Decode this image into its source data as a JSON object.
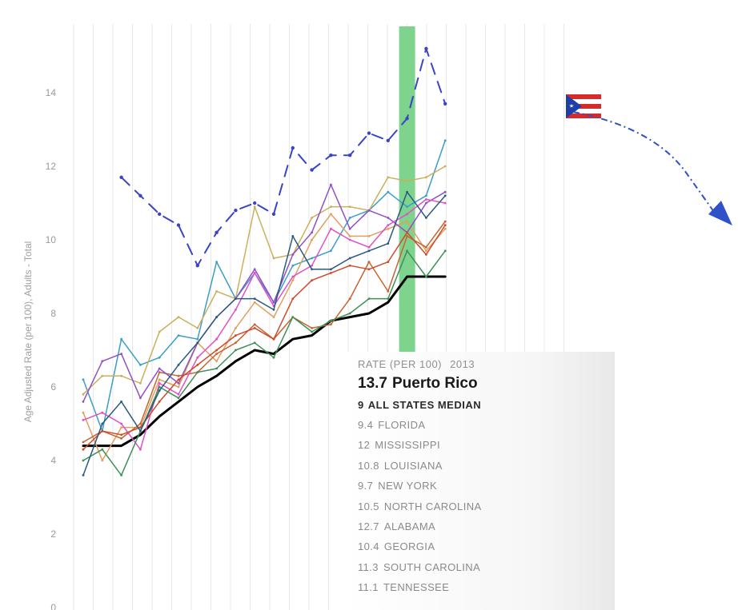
{
  "chart_data": {
    "type": "line",
    "ylabel": "Age Adjusted Rate (per 100), Adults - Total",
    "ylim": [
      0,
      16
    ],
    "yticks": [
      0,
      2,
      4,
      6,
      8,
      10,
      12,
      14
    ],
    "x_count": 20,
    "highlight_index": 17,
    "series": [
      {
        "values": [
          null,
          null,
          11.7,
          11.2,
          10.7,
          10.4,
          9.3,
          10.2,
          10.8,
          11.0,
          10.7,
          12.5,
          11.9,
          12.3,
          12.3,
          12.9,
          12.7,
          13.3,
          15.2,
          13.7
        ],
        "color": "#3a44c8",
        "style": "dashed",
        "width": 2
      },
      {
        "values": [
          4.4,
          4.4,
          4.4,
          4.7,
          5.2,
          5.6,
          6.0,
          6.3,
          6.7,
          7.0,
          6.9,
          7.3,
          7.4,
          7.8,
          7.9,
          8.0,
          8.3,
          9.0,
          9.0,
          9.0
        ],
        "color": "#000000",
        "style": "solid",
        "width": 3
      },
      {
        "values": [
          6.2,
          4.8,
          7.3,
          6.6,
          6.8,
          7.4,
          7.3,
          9.4,
          8.4,
          9.1,
          8.3,
          9.3,
          9.5,
          9.7,
          10.6,
          10.8,
          11.3,
          10.9,
          11.2,
          12.7
        ],
        "color": "#3a9ec8",
        "style": "solid",
        "width": 1.5
      },
      {
        "values": [
          5.8,
          6.3,
          6.3,
          6.1,
          7.5,
          7.9,
          7.6,
          8.6,
          8.4,
          10.9,
          9.5,
          9.6,
          10.6,
          10.9,
          10.9,
          10.8,
          11.7,
          11.6,
          11.7,
          12.0
        ],
        "color": "#c9b05a",
        "style": "solid",
        "width": 1.5
      },
      {
        "values": [
          5.3,
          4.0,
          4.9,
          4.9,
          6.2,
          6.0,
          7.2,
          6.7,
          7.6,
          8.3,
          7.9,
          8.9,
          10.0,
          10.7,
          10.1,
          10.1,
          10.3,
          10.5,
          9.7,
          10.3
        ],
        "color": "#e0a060",
        "style": "solid",
        "width": 1.5
      },
      {
        "values": [
          4.5,
          4.8,
          4.6,
          5.0,
          6.4,
          6.3,
          6.4,
          6.9,
          7.2,
          7.7,
          7.3,
          7.9,
          7.6,
          7.7,
          8.4,
          9.4,
          8.6,
          10.1,
          9.8,
          10.5
        ],
        "color": "#c86432",
        "style": "solid",
        "width": 1.5
      },
      {
        "values": [
          5.6,
          6.7,
          6.9,
          5.7,
          6.5,
          6.1,
          7.2,
          7.9,
          8.4,
          9.2,
          8.3,
          9.6,
          10.2,
          11.5,
          10.3,
          10.8,
          10.6,
          10.2,
          11.0,
          11.3
        ],
        "color": "#9050c8",
        "style": "solid",
        "width": 1.5
      },
      {
        "values": [
          5.1,
          5.3,
          5.0,
          4.3,
          6.1,
          5.8,
          6.8,
          7.3,
          8.1,
          9.1,
          8.2,
          9.0,
          9.3,
          10.3,
          10.0,
          9.8,
          10.4,
          10.7,
          11.1,
          11.0
        ],
        "color": "#e050c8",
        "style": "solid",
        "width": 1.5
      },
      {
        "values": [
          4.3,
          4.8,
          4.7,
          4.9,
          5.6,
          6.2,
          6.6,
          7.0,
          7.4,
          7.6,
          7.3,
          8.4,
          8.9,
          9.1,
          9.3,
          9.2,
          9.4,
          10.2,
          9.6,
          10.4
        ],
        "color": "#d04a2a",
        "style": "solid",
        "width": 1.5
      },
      {
        "values": [
          4.0,
          4.3,
          3.6,
          4.8,
          6.0,
          5.7,
          6.4,
          6.5,
          7.0,
          7.2,
          6.8,
          7.9,
          7.5,
          7.8,
          8.0,
          8.4,
          8.4,
          9.7,
          9.0,
          9.7
        ],
        "color": "#3f8f5a",
        "style": "solid",
        "width": 1.5
      },
      {
        "values": [
          3.6,
          5.0,
          5.6,
          4.8,
          5.9,
          6.6,
          7.2,
          7.9,
          8.4,
          8.4,
          8.1,
          10.1,
          9.2,
          9.2,
          9.5,
          9.7,
          9.9,
          11.3,
          10.6,
          11.2
        ],
        "color": "#2a5a80",
        "style": "solid",
        "width": 1.5
      }
    ],
    "tooltip": {
      "header_label": "RATE (PER 100)",
      "header_year": "2013",
      "highlight_value": "13.7",
      "highlight_name": "Puerto Rico",
      "median_value": "9",
      "median_name": "ALL STATES MEDIAN",
      "rows": [
        {
          "value": "9.4",
          "name": "FLORIDA"
        },
        {
          "value": "12",
          "name": "MISSISSIPPI"
        },
        {
          "value": "10.8",
          "name": "LOUISIANA"
        },
        {
          "value": "9.7",
          "name": "NEW YORK"
        },
        {
          "value": "10.5",
          "name": "NORTH CAROLINA"
        },
        {
          "value": "12.7",
          "name": "ALABAMA"
        },
        {
          "value": "10.4",
          "name": "GEORGIA"
        },
        {
          "value": "11.3",
          "name": "SOUTH CAROLINA"
        },
        {
          "value": "11.1",
          "name": "TENNESSEE"
        }
      ]
    }
  },
  "colors": {
    "highlight_band": "#7ed38d",
    "gridline": "#e8e8e8",
    "arrow": "#2f52c8",
    "flag_red": "#d42b2b",
    "flag_blue": "#1d3fa8"
  },
  "icons": {
    "flag": "puerto-rico-flag-icon",
    "arrow": "dash-dot-arrow-icon"
  }
}
